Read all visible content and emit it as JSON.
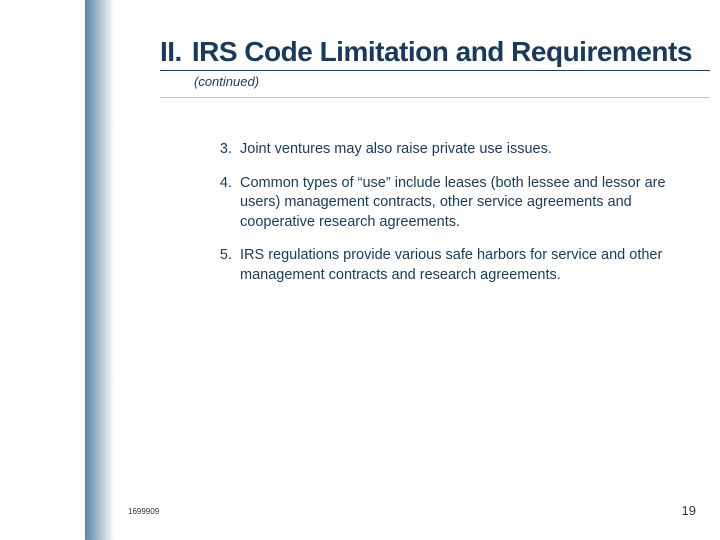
{
  "header": {
    "section_number": "II.",
    "section_title": "IRS Code Limitation and Requirements",
    "continued_label": "(continued)"
  },
  "items": [
    {
      "num": "3.",
      "text": "Joint ventures may also raise private use issues."
    },
    {
      "num": "4.",
      "text": "Common types of “use” include leases (both lessee and lessor are users) management contracts, other service agreements and cooperative research agreements."
    },
    {
      "num": "5.",
      "text": "IRS regulations provide various safe harbors for service and other management contracts and research agreements."
    }
  ],
  "footer": {
    "doc_id": "1699909",
    "page_number": "19"
  },
  "colors": {
    "heading": "#1a3a5c",
    "body_text": "#1a3a5c",
    "divider": "#c0c0c0",
    "sidebar_start": "#5b87a8",
    "sidebar_end": "#ffffff",
    "background": "#ffffff"
  }
}
